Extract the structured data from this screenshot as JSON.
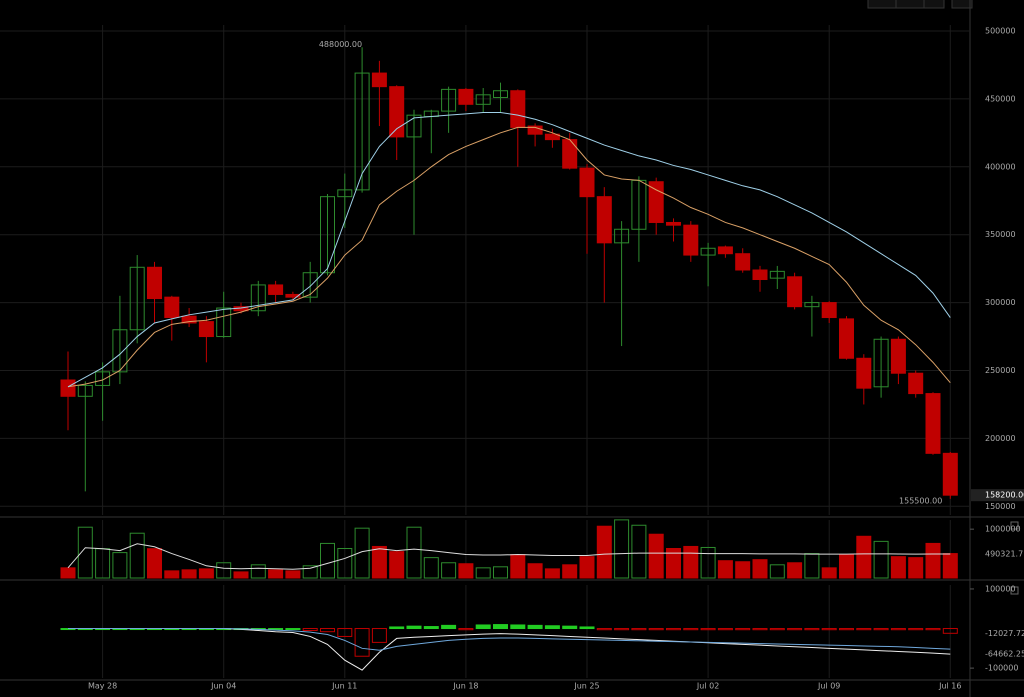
{
  "chart_data": [
    {
      "type": "candlestick",
      "categories": [
        null,
        null,
        "May 28",
        null,
        null,
        null,
        null,
        null,
        null,
        "Jun 04",
        null,
        null,
        null,
        null,
        null,
        null,
        "Jun 11",
        null,
        null,
        null,
        null,
        null,
        null,
        "Jun 18",
        null,
        null,
        null,
        null,
        null,
        null,
        "Jun 25",
        null,
        null,
        null,
        null,
        null,
        null,
        "Jul 02",
        null,
        null,
        null,
        null,
        null,
        null,
        "Jul 09",
        null,
        null,
        null,
        null,
        null,
        null,
        "Jul 16"
      ],
      "open": [
        243000,
        231000,
        239000,
        249000,
        280000,
        326000,
        304000,
        290000,
        286000,
        275000,
        297000,
        294000,
        313000,
        306000,
        304000,
        322000,
        378000,
        383000,
        469000,
        459000,
        422000,
        437000,
        441000,
        457000,
        446000,
        451000,
        456000,
        430000,
        424000,
        420000,
        399000,
        378000,
        344000,
        354000,
        389000,
        359000,
        357000,
        335000,
        341000,
        336000,
        324000,
        318000,
        319000,
        297000,
        300000,
        288000,
        259000,
        238000,
        273000,
        248000,
        233000,
        189000
      ],
      "high": [
        264000,
        242000,
        256000,
        305000,
        335000,
        330000,
        305000,
        296000,
        290000,
        308000,
        300000,
        316000,
        316000,
        308000,
        330000,
        380000,
        395000,
        488000,
        478000,
        460000,
        442000,
        442000,
        459000,
        458000,
        458000,
        462000,
        457000,
        432000,
        428000,
        425000,
        402000,
        385000,
        360000,
        393000,
        392000,
        362000,
        360000,
        344000,
        342000,
        340000,
        327000,
        327000,
        322000,
        305000,
        301000,
        290000,
        262000,
        275000,
        275000,
        250000,
        234000,
        190000
      ],
      "low": [
        206000,
        161000,
        213000,
        240000,
        270000,
        285000,
        272000,
        282000,
        256000,
        274000,
        292000,
        290000,
        300000,
        302000,
        300000,
        320000,
        355000,
        381000,
        430000,
        405000,
        350000,
        410000,
        425000,
        441000,
        440000,
        440000,
        400000,
        415000,
        414000,
        398000,
        336000,
        300000,
        268000,
        330000,
        350000,
        345000,
        330000,
        312000,
        333000,
        322000,
        308000,
        310000,
        295000,
        275000,
        285000,
        258000,
        225000,
        230000,
        240000,
        230000,
        188000,
        155500
      ],
      "close": [
        231000,
        239000,
        249000,
        280000,
        326000,
        303000,
        289000,
        285000,
        275000,
        296000,
        294000,
        313000,
        306000,
        304000,
        322000,
        378000,
        383000,
        469000,
        459000,
        422000,
        438000,
        441000,
        457000,
        446000,
        453000,
        456000,
        429000,
        424000,
        420000,
        399000,
        378000,
        344000,
        354000,
        390000,
        359000,
        357000,
        335000,
        340000,
        336000,
        324000,
        317000,
        323000,
        297000,
        300000,
        289000,
        259000,
        237000,
        273000,
        248000,
        233000,
        189000,
        158200
      ],
      "up_color": "#2e8b2e",
      "down_color": "#c00000",
      "series": [
        {
          "color": "#d9a066",
          "values": [
            238000,
            240000,
            243000,
            250000,
            265000,
            278000,
            284000,
            286000,
            287000,
            290000,
            293000,
            297000,
            299000,
            301000,
            306000,
            318000,
            335000,
            346000,
            372000,
            382000,
            390000,
            400000,
            409000,
            415000,
            420000,
            425000,
            429000,
            429000,
            425000,
            420000,
            405000,
            394000,
            391000,
            390000,
            383000,
            377000,
            370000,
            365000,
            359000,
            355000,
            350000,
            345000,
            340000,
            334000,
            328000,
            315000,
            298000,
            287000,
            280000,
            269000,
            256000,
            241000
          ]
        },
        {
          "color": "#9fd0e8",
          "values": [
            238000,
            245000,
            252000,
            262000,
            275000,
            285000,
            288000,
            291000,
            293000,
            295000,
            296000,
            298000,
            300000,
            302000,
            312000,
            325000,
            360000,
            395000,
            415000,
            428000,
            436000,
            437000,
            438000,
            439000,
            440000,
            440000,
            438000,
            435000,
            431000,
            426000,
            421000,
            416000,
            412000,
            408000,
            405000,
            401000,
            398000,
            394000,
            390000,
            386000,
            383000,
            378000,
            372000,
            366000,
            359000,
            352000,
            344000,
            336000,
            328000,
            320000,
            307000,
            289000
          ]
        }
      ],
      "high_label": {
        "value": 488000,
        "label": "488000.00"
      },
      "low_label": {
        "value": 155500,
        "label": "155500.00"
      },
      "last_price": {
        "value": 158200,
        "label": "158200.00"
      },
      "ylim": [
        143600,
        504400
      ],
      "yticks": [
        150000,
        200000,
        250000,
        300000,
        350000,
        400000,
        450000,
        500000
      ],
      "grid": true
    },
    {
      "type": "volume",
      "values": [
        208000,
        1040000,
        600000,
        520000,
        917000,
        600000,
        146000,
        167000,
        187000,
        312000,
        125000,
        270000,
        167000,
        146000,
        250000,
        708000,
        604000,
        1020000,
        646000,
        540000,
        1040000,
        417000,
        312000,
        292000,
        208000,
        229000,
        479000,
        292000,
        187000,
        270000,
        437000,
        1060000,
        1190000,
        1080000,
        896000,
        604000,
        646000,
        625000,
        354000,
        333000,
        375000,
        270000,
        312000,
        500000,
        208000,
        479000,
        854000,
        750000,
        437000,
        417000,
        708000,
        500000
      ],
      "series": [
        {
          "color": "#dddddd",
          "values": [
            208000,
            620000,
            600000,
            560000,
            700000,
            640000,
            500000,
            380000,
            250000,
            200000,
            190000,
            200000,
            190000,
            180000,
            200000,
            300000,
            400000,
            540000,
            600000,
            560000,
            590000,
            560000,
            520000,
            480000,
            470000,
            470000,
            480000,
            470000,
            460000,
            460000,
            460000,
            490000,
            500000,
            510000,
            510000,
            510000,
            510000,
            500000,
            500000,
            500000,
            495000,
            495000,
            495000,
            490000,
            490000,
            490000,
            495000,
            495000,
            492000,
            490000,
            492000,
            490321.71
          ]
        }
      ],
      "ylim": [
        0,
        1187500
      ],
      "yticks": [
        1000000
      ]
    },
    {
      "type": "macd",
      "histogram": [
        0,
        0,
        0,
        0,
        0,
        0,
        0,
        0,
        0,
        0,
        0,
        0,
        0,
        0,
        -5000,
        -8000,
        -20000,
        -70000,
        -35000,
        4000,
        6000,
        5000,
        8000,
        -3000,
        9000,
        10000,
        9000,
        8000,
        7000,
        6000,
        4000,
        -3000,
        -3000,
        -3000,
        -3000,
        -3000,
        -3000,
        -3000,
        -3000,
        -3000,
        -3000,
        -3000,
        -3000,
        -3000,
        -3000,
        -3000,
        -3000,
        -3000,
        -3000,
        -3000,
        -3000,
        -12027.72
      ],
      "up_color": "#22cc22",
      "down_color": "#c00000",
      "series": [
        {
          "color": "#eeeeee",
          "values": [
            0,
            0,
            0,
            0,
            0,
            0,
            0,
            0,
            0,
            0,
            -2000,
            -5000,
            -8000,
            -10000,
            -20000,
            -40000,
            -80000,
            -105000,
            -60000,
            -25000,
            -22000,
            -20000,
            -18000,
            -16000,
            -14000,
            -13000,
            -14000,
            -16000,
            -18000,
            -20000,
            -22000,
            -24000,
            -26000,
            -28000,
            -30000,
            -32000,
            -34000,
            -36000,
            -38000,
            -40000,
            -42000,
            -44000,
            -46000,
            -48000,
            -50000,
            -52000,
            -54000,
            -56000,
            -58000,
            -60000,
            -62000,
            -64662.25
          ]
        },
        {
          "color": "#6fa8dc",
          "values": [
            0,
            0,
            0,
            0,
            0,
            0,
            0,
            0,
            0,
            0,
            -1000,
            -2000,
            -4000,
            -6000,
            -9000,
            -15000,
            -30000,
            -50000,
            -55000,
            -45000,
            -40000,
            -35000,
            -30000,
            -27000,
            -25000,
            -24000,
            -24000,
            -25000,
            -26000,
            -27000,
            -28000,
            -29000,
            -30000,
            -31000,
            -32000,
            -33000,
            -34000,
            -35000,
            -36000,
            -37000,
            -38000,
            -39000,
            -40000,
            -41000,
            -42000,
            -43000,
            -44000,
            -45000,
            -46000,
            -48000,
            -50000,
            -52000
          ]
        }
      ],
      "ylim": [
        -125000,
        110000
      ],
      "yticks": [
        100000,
        -100000
      ]
    }
  ]
}
